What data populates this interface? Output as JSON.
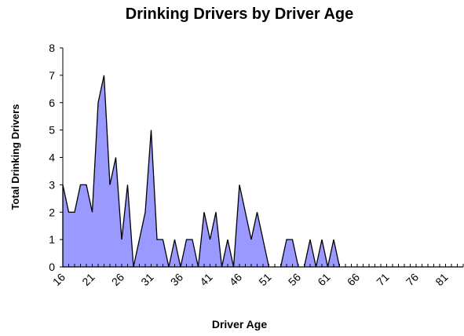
{
  "chart_data": {
    "type": "area",
    "title": "Drinking Drivers by Driver Age",
    "x_label": "Driver Age",
    "y_label": "Total Drinking Drivers",
    "categories": [
      16,
      null,
      null,
      null,
      null,
      21,
      null,
      null,
      null,
      null,
      26,
      null,
      null,
      null,
      null,
      31,
      null,
      null,
      null,
      null,
      36,
      null,
      null,
      null,
      null,
      41,
      null,
      null,
      null,
      null,
      46,
      null,
      null,
      null,
      null,
      51,
      null,
      null,
      null,
      null,
      56,
      null,
      null,
      null,
      null,
      61,
      null,
      null,
      null,
      null,
      66,
      null,
      null,
      null,
      null,
      71,
      null,
      null,
      null,
      null,
      76,
      null,
      null,
      null,
      null,
      81,
      null,
      null,
      null
    ],
    "values": [
      3,
      2,
      2,
      3,
      3,
      2,
      6,
      7,
      3,
      4,
      1,
      3,
      0,
      1,
      2,
      5,
      1,
      1,
      0,
      1,
      0,
      1,
      1,
      0,
      2,
      1,
      2,
      0,
      1,
      0,
      3,
      2,
      1,
      2,
      1,
      0,
      0,
      0,
      1,
      1,
      0,
      0,
      1,
      0,
      1,
      0,
      1,
      0,
      0,
      0,
      0,
      0,
      0,
      0,
      0,
      0,
      0,
      0,
      0,
      0,
      0,
      0,
      0,
      0,
      0,
      0,
      0,
      0,
      0
    ],
    "color": "#9999ff",
    "ylim": [
      0,
      8
    ],
    "yticks": [
      0,
      1,
      2,
      3,
      4,
      5,
      6,
      7,
      8
    ]
  }
}
